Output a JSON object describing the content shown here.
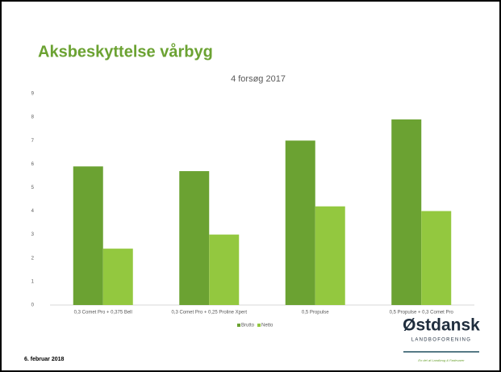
{
  "slide": {
    "title": "Aksbeskyttelse vårbyg",
    "date": "6. februar 2018",
    "logo": {
      "name": "Østdansk",
      "sub": "LANDBOFORENING",
      "tagline": "En del af Landbrug & Fødevarer"
    }
  },
  "chart_data": {
    "type": "bar",
    "title": "4 forsøg 2017",
    "categories": [
      "0,3 Comet Pro + 0,375 Bell",
      "0,3 Comet Pro + 0,25 Proline Xpert",
      "0,5 Propulse",
      "0,5 Propulse + 0,3 Comet Pro"
    ],
    "series": [
      {
        "name": "Brutto",
        "color": "#6ba232",
        "values": [
          5.9,
          5.7,
          7.0,
          7.9
        ]
      },
      {
        "name": "Netto",
        "color": "#93c83f",
        "values": [
          2.4,
          3.0,
          4.2,
          4.0
        ]
      }
    ],
    "ylim": [
      0,
      9
    ],
    "yticks": [
      0,
      1,
      2,
      3,
      4,
      5,
      6,
      7,
      8,
      9
    ],
    "grid": false,
    "legend": "bottom"
  }
}
